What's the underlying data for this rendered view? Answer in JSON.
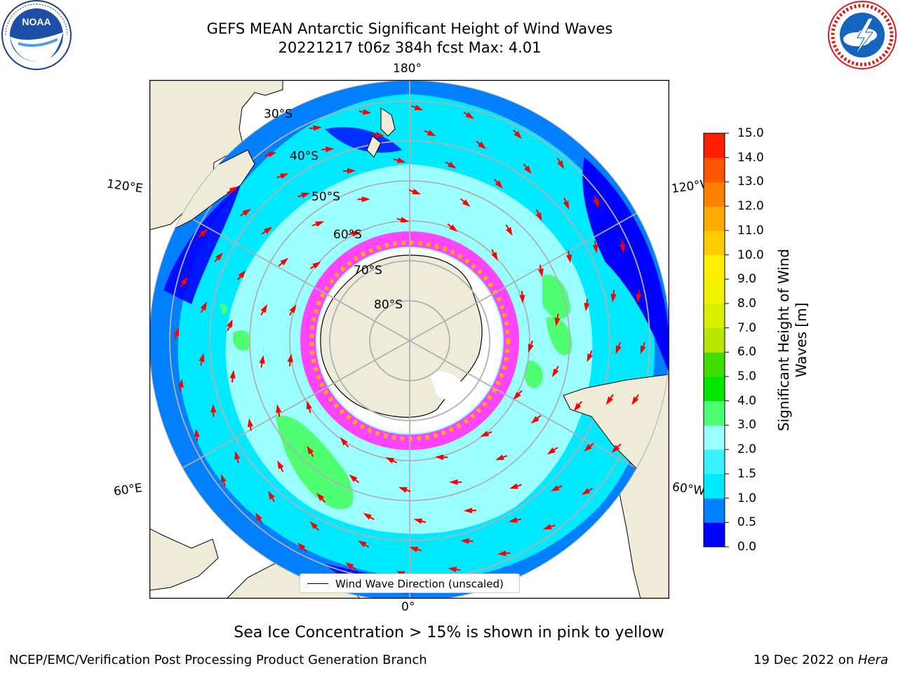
{
  "header": {
    "title_line1": "GEFS MEAN Antarctic Significant Height of Wind Waves",
    "title_line2": "20221217 t06z 384h fcst   Max: 4.01"
  },
  "logos": {
    "left": {
      "name": "NOAA",
      "ring_text": "NATIONAL OCEANIC AND ATMOSPHERIC ADMINISTRATION",
      "bottom_text": "U.S. DEPARTMENT OF COMMERCE"
    },
    "right": {
      "name": "NATIONAL WEATHER SERVICE"
    }
  },
  "map": {
    "longitude_labels": {
      "top": "180°",
      "bottom": "0°",
      "left_upper": "120°E",
      "left_lower": "60°E",
      "right_upper": "120°W",
      "right_lower": "60°W"
    },
    "latitude_labels": [
      "30°S",
      "40°S",
      "50°S",
      "60°S",
      "70°S",
      "80°S"
    ],
    "legend_label": "Wind Wave Direction (unscaled)",
    "colors": {
      "land": "#efebd9",
      "ice_pink": "#ff44ff",
      "ice_yellow": "#ffb000",
      "arrow": "#ff0000"
    }
  },
  "colorbar": {
    "title_line1": "Significant Height of Wind",
    "title_line2": "Waves [m]",
    "ticks": [
      "0.0",
      "0.5",
      "1.0",
      "1.5",
      "2.0",
      "3.0",
      "4.0",
      "5.0",
      "6.0",
      "7.0",
      "8.0",
      "9.0",
      "10.0",
      "11.0",
      "12.0",
      "13.0",
      "14.0",
      "15.0"
    ],
    "colors": [
      "#0000ff",
      "#0080ff",
      "#00eaff",
      "#38f2ff",
      "#9bffff",
      "#4eff72",
      "#00e600",
      "#3fdc00",
      "#b9e600",
      "#d8f000",
      "#f2f200",
      "#fff000",
      "#ffcc00",
      "#ffaa00",
      "#ff8000",
      "#ff5500",
      "#ff1e00"
    ]
  },
  "caption": "Sea Ice Concentration > 15% is shown in pink to yellow",
  "footer": {
    "left": "NCEP/EMC/Verification Post Processing Product Generation Branch",
    "right_date": "19 Dec 2022 on ",
    "right_machine": "Hera"
  }
}
